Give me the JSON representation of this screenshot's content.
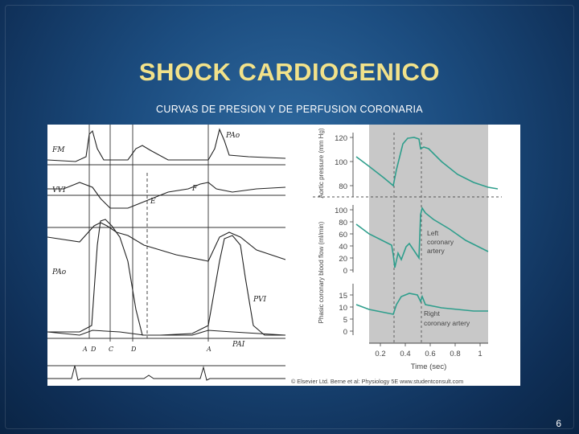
{
  "slide": {
    "title": "SHOCK CARDIOGENICO",
    "subtitle": "CURVAS DE PRESION Y DE PERFUSION CORONARIA",
    "page_number": "6"
  },
  "left_panel": {
    "trace_labels": {
      "fm": "FM",
      "vvi": "VVI",
      "pao_top": "PAo",
      "pao": "PAo",
      "pvi": "PVI",
      "pai": "PAI",
      "f": "F",
      "e": "E"
    },
    "point_labels": {
      "a1": "A",
      "d1": "D",
      "c": "C",
      "d2": "D",
      "a2": "A"
    }
  },
  "right_panel": {
    "aortic_axis_label": "Aortic pressure (mm Hg)",
    "aortic_ticks": [
      "120",
      "100",
      "80"
    ],
    "flow_axis_label": "Phasic coronary blood flow (ml/min)",
    "left_ticks": [
      "100",
      "80",
      "60",
      "40",
      "20",
      "0"
    ],
    "right_ticks": [
      "15",
      "10",
      "5",
      "0"
    ],
    "left_artery_label_1": "Left",
    "left_artery_label_2": "coronary",
    "left_artery_label_3": "artery",
    "right_artery_label_1": "Right",
    "right_artery_label_2": "coronary artery",
    "time_ticks": [
      "0.2",
      "0.4",
      "0.6",
      "0.8",
      "1"
    ],
    "time_axis_label": "Time (sec)",
    "credit": "© Elsevier Ltd. Berne et al: Physiology 5E www.studentconsult.com"
  },
  "colors": {
    "title": "#f2e28a",
    "curve": "#2e9e8c",
    "panel_gray": "#c8c8c8"
  }
}
